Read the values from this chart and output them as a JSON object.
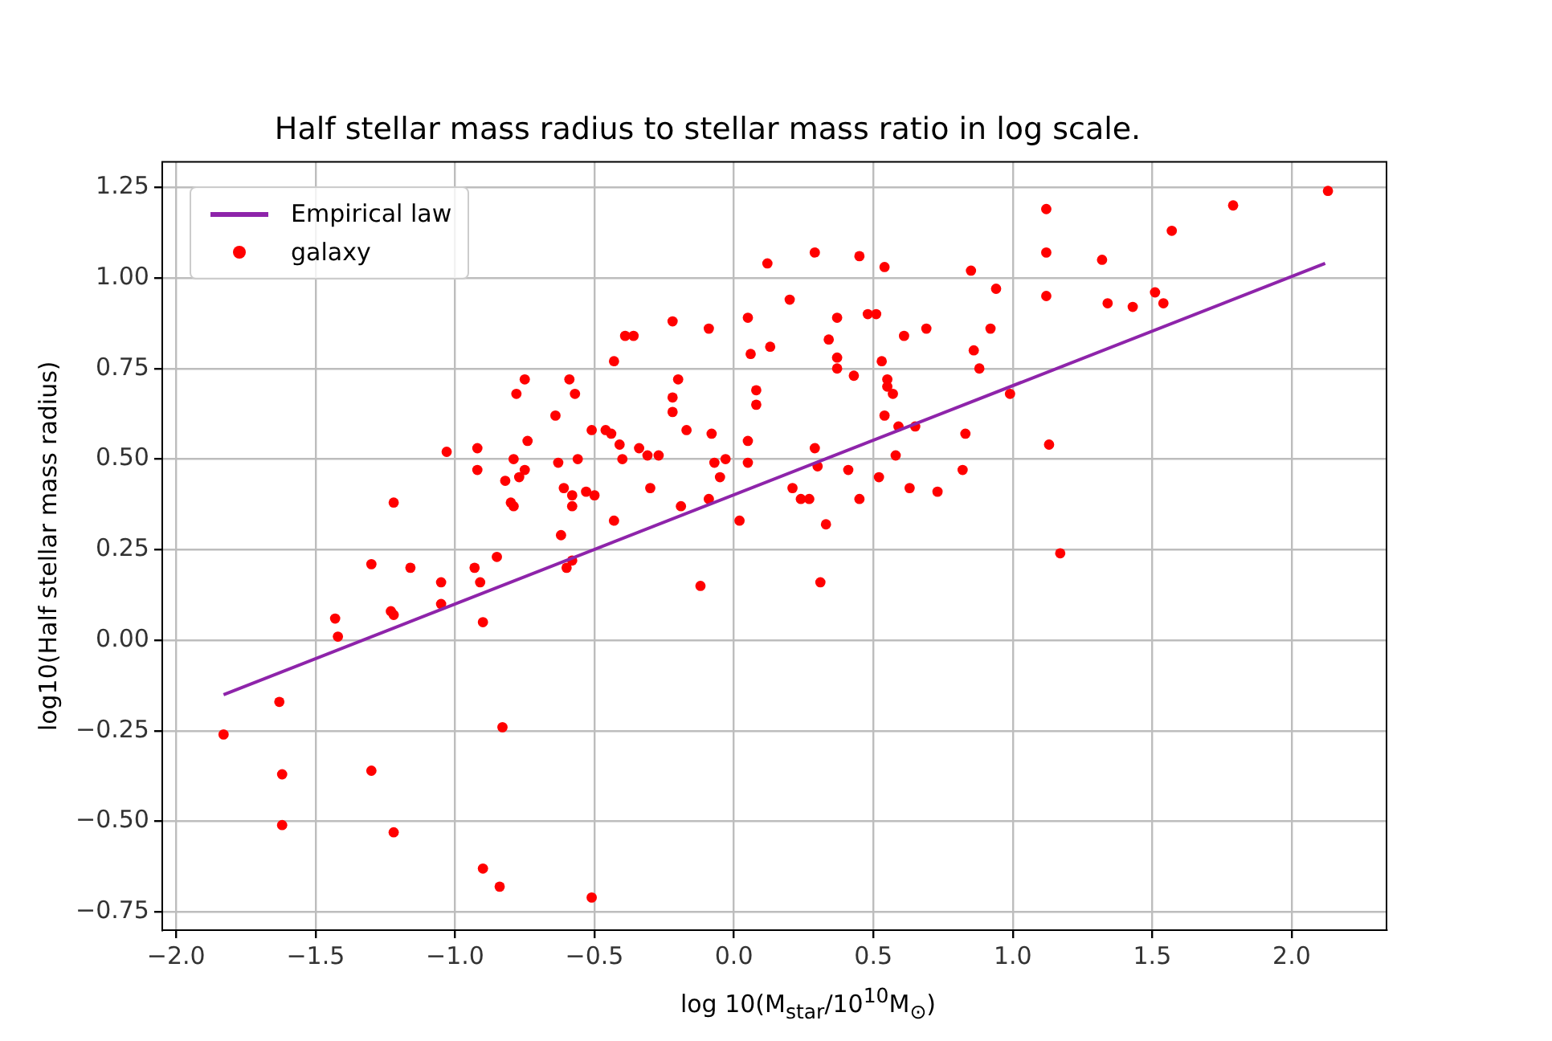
{
  "chart_data": {
    "type": "scatter",
    "title": "Half stellar mass radius to stellar mass ratio in log scale.",
    "xlabel": "log 10(M$_{star}$/10$^{10}$M$_{⊙}$)",
    "ylabel": "log10(Half stellar mass radius)",
    "xlim": [
      -2.05,
      2.34
    ],
    "ylim": [
      -0.8,
      1.32
    ],
    "xticks": [
      {
        "value": -2,
        "label": "−2.0"
      },
      {
        "value": -1.5,
        "label": "−1.5"
      },
      {
        "value": -1,
        "label": "−1.0"
      },
      {
        "value": -0.5,
        "label": "−0.5"
      },
      {
        "value": 0,
        "label": "0.0"
      },
      {
        "value": 0.5,
        "label": "0.5"
      },
      {
        "value": 1,
        "label": "1.0"
      },
      {
        "value": 1.5,
        "label": "1.5"
      },
      {
        "value": 2,
        "label": "2.0"
      }
    ],
    "yticks": [
      {
        "value": -0.75,
        "label": "−0.75"
      },
      {
        "value": -0.5,
        "label": "−0.50"
      },
      {
        "value": -0.25,
        "label": "−0.25"
      },
      {
        "value": 0,
        "label": "0.00"
      },
      {
        "value": 0.25,
        "label": "0.25"
      },
      {
        "value": 0.5,
        "label": "0.50"
      },
      {
        "value": 0.75,
        "label": "0.75"
      },
      {
        "value": 1,
        "label": "1.00"
      },
      {
        "value": 1.25,
        "label": "1.25"
      }
    ],
    "grid": true,
    "legend": "top left",
    "series": [
      {
        "name": "Empirical law",
        "type": "line",
        "color": "#8e24aa",
        "marker": "none",
        "line_style": "solid",
        "x": [
          -1.83,
          2.12
        ],
        "values": [
          -0.15,
          1.04
        ]
      },
      {
        "name": "galaxy",
        "type": "scatter",
        "color": "#ff0000",
        "marker": "circle",
        "x": [
          -1.83,
          -1.63,
          -1.62,
          -1.62,
          -1.43,
          -1.42,
          -1.3,
          -1.3,
          -1.22,
          -1.23,
          -1.22,
          -1.22,
          -1.16,
          -1.05,
          -1.05,
          -1.03,
          -0.93,
          -0.92,
          -0.92,
          -0.91,
          -0.9,
          -0.9,
          -0.85,
          -0.84,
          -0.83,
          -0.82,
          -0.8,
          -0.79,
          -0.79,
          -0.78,
          -0.75,
          -0.77,
          -0.75,
          -0.74,
          -0.64,
          -0.63,
          -0.62,
          -0.61,
          -0.6,
          -0.59,
          -0.58,
          -0.57,
          -0.58,
          -0.58,
          -0.56,
          -0.53,
          -0.51,
          -0.51,
          -0.5,
          -0.46,
          -0.44,
          -0.43,
          -0.43,
          -0.41,
          -0.4,
          -0.39,
          -0.36,
          -0.34,
          -0.31,
          -0.27,
          -0.3,
          -0.22,
          -0.22,
          -0.22,
          -0.2,
          -0.19,
          -0.17,
          -0.12,
          -0.09,
          -0.09,
          -0.08,
          -0.07,
          -0.05,
          -0.03,
          0.02,
          0.05,
          0.05,
          0.05,
          0.06,
          0.08,
          0.08,
          0.12,
          0.13,
          0.2,
          0.21,
          0.24,
          0.27,
          0.29,
          0.29,
          0.3,
          0.31,
          0.33,
          0.34,
          0.37,
          0.37,
          0.37,
          0.41,
          0.43,
          0.45,
          0.45,
          0.48,
          0.51,
          0.52,
          0.54,
          0.53,
          0.55,
          0.55,
          0.57,
          0.54,
          0.58,
          0.59,
          0.61,
          0.63,
          0.65,
          0.69,
          0.73,
          0.82,
          0.83,
          0.85,
          0.86,
          0.88,
          0.92,
          0.94,
          0.99,
          1.13,
          1.12,
          1.12,
          1.12,
          1.17,
          1.32,
          1.34,
          1.43,
          1.51,
          1.54,
          1.57,
          1.79,
          2.13
        ],
        "values": [
          -0.26,
          -0.17,
          -0.37,
          -0.51,
          0.06,
          0.01,
          0.21,
          -0.36,
          0.38,
          0.08,
          0.07,
          -0.53,
          0.2,
          0.1,
          0.16,
          0.52,
          0.2,
          0.53,
          0.47,
          0.16,
          0.05,
          -0.63,
          0.23,
          -0.68,
          -0.24,
          0.44,
          0.38,
          0.37,
          0.5,
          0.68,
          0.72,
          0.45,
          0.47,
          0.55,
          0.62,
          0.49,
          0.29,
          0.42,
          0.2,
          0.72,
          0.22,
          0.68,
          0.37,
          0.4,
          0.5,
          0.41,
          0.58,
          -0.71,
          0.4,
          0.58,
          0.57,
          0.33,
          0.77,
          0.54,
          0.5,
          0.84,
          0.84,
          0.53,
          0.51,
          0.51,
          0.42,
          0.88,
          0.63,
          0.67,
          0.72,
          0.37,
          0.58,
          0.15,
          0.86,
          0.39,
          0.57,
          0.49,
          0.45,
          0.5,
          0.33,
          0.89,
          0.55,
          0.49,
          0.79,
          0.69,
          0.65,
          1.04,
          0.81,
          0.94,
          0.42,
          0.39,
          0.39,
          1.07,
          0.53,
          0.48,
          0.16,
          0.32,
          0.83,
          0.78,
          0.75,
          0.89,
          0.47,
          0.73,
          1.06,
          0.39,
          0.9,
          0.9,
          0.45,
          1.03,
          0.77,
          0.72,
          0.7,
          0.68,
          0.62,
          0.51,
          0.59,
          0.84,
          0.42,
          0.59,
          0.86,
          0.41,
          0.47,
          0.57,
          1.02,
          0.8,
          0.75,
          0.86,
          0.97,
          0.68,
          0.54,
          0.95,
          1.07,
          1.19,
          0.24,
          1.05,
          0.93,
          0.92,
          0.96,
          0.93,
          1.13,
          1.2,
          1.24
        ]
      }
    ]
  }
}
